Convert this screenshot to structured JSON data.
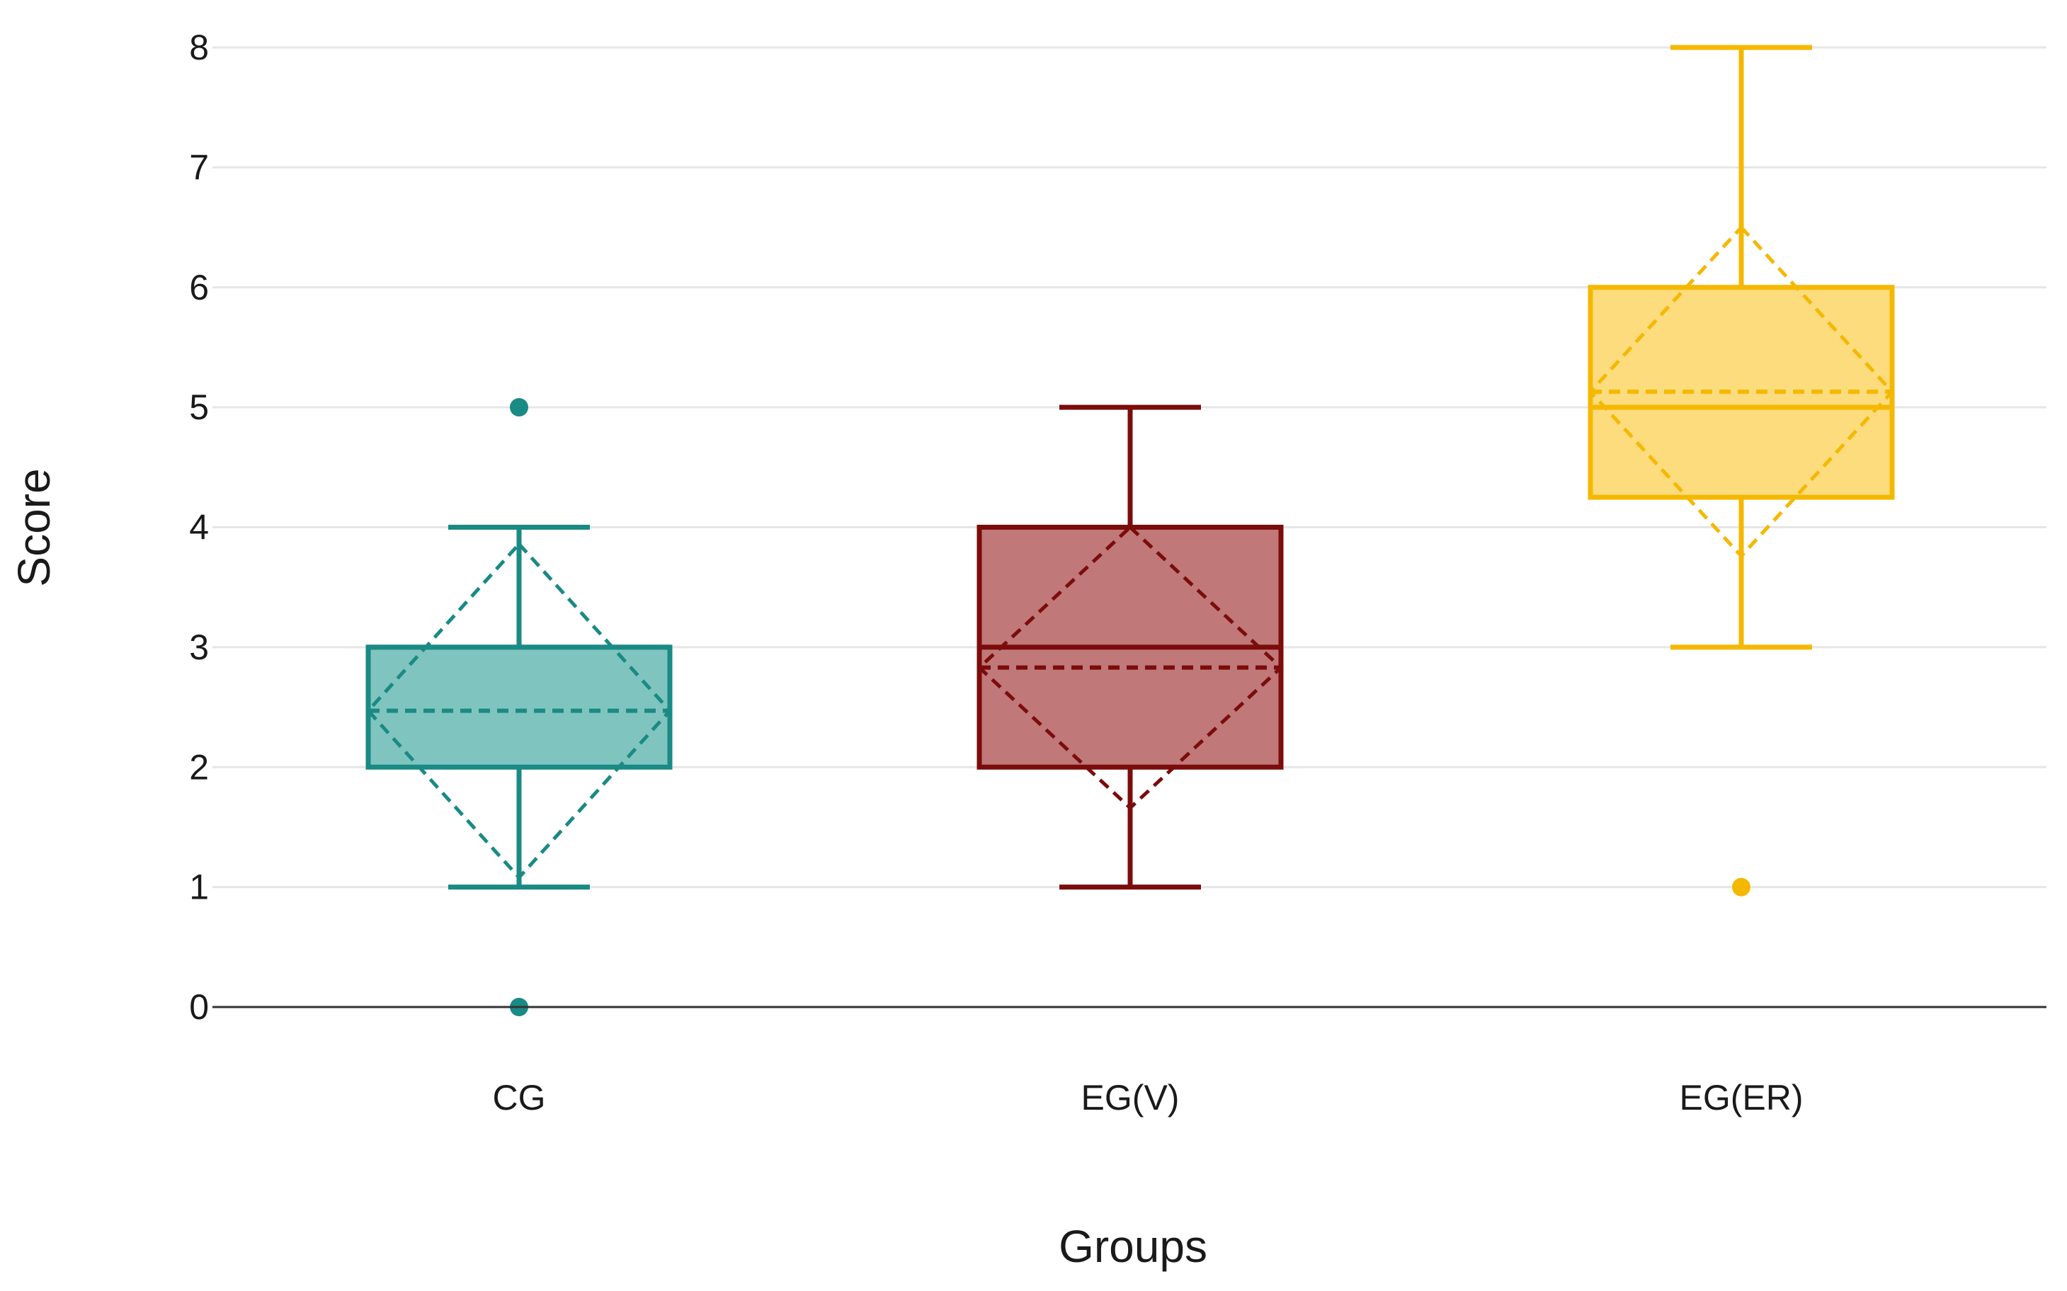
{
  "chart_data": {
    "type": "box",
    "title": "",
    "xlabel": "Groups",
    "ylabel": "Score",
    "ylim": [
      0,
      8
    ],
    "yticks": [
      0,
      1,
      2,
      3,
      4,
      5,
      6,
      7,
      8
    ],
    "grid": true,
    "categories": [
      "CG",
      "EG(V)",
      "EG(ER)"
    ],
    "series": [
      {
        "name": "CG",
        "color": "#1a8a84",
        "fill": "#80c4c0",
        "whisker_low": 1,
        "q1": 2,
        "median": 3,
        "q3": 3,
        "whisker_high": 4,
        "mean": 2.47,
        "sd": 1.39,
        "outliers": [
          5,
          0
        ]
      },
      {
        "name": "EG(V)",
        "color": "#7b0c0c",
        "fill": "#c07878",
        "whisker_low": 1,
        "q1": 2,
        "median": 3,
        "q3": 4,
        "whisker_high": 5,
        "mean": 2.83,
        "sd": 1.17,
        "outliers": []
      },
      {
        "name": "EG(ER)",
        "color": "#f5b800",
        "fill": "#fddc7e",
        "whisker_low": 3,
        "q1": 4.25,
        "median": 5,
        "q3": 6,
        "whisker_high": 8,
        "mean": 5.13,
        "sd": 1.37,
        "outliers": [
          1
        ]
      }
    ]
  }
}
